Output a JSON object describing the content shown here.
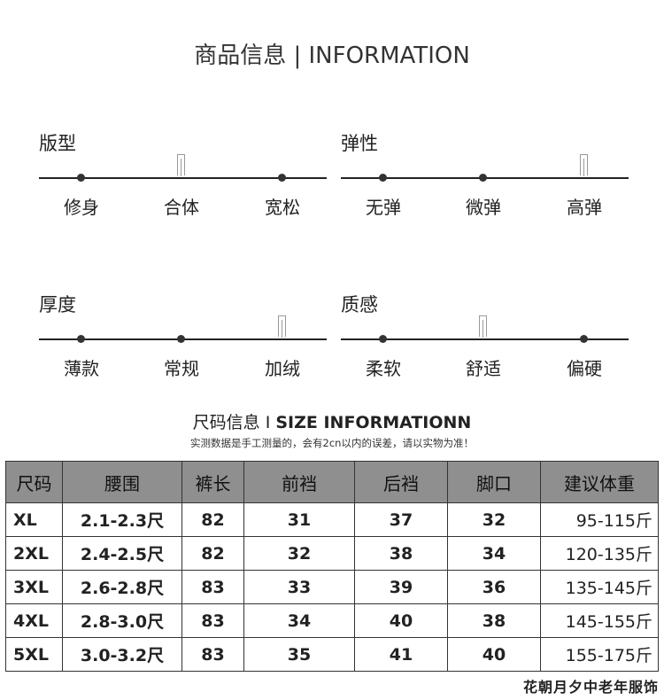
{
  "header": {
    "title": "商品信息 | INFORMATION"
  },
  "scales": [
    {
      "name": "版型",
      "options": [
        "修身",
        "合体",
        "宽松"
      ],
      "selected": 1
    },
    {
      "name": "弹性",
      "options": [
        "无弹",
        "微弹",
        "高弹"
      ],
      "selected": 2
    },
    {
      "name": "厚度",
      "options": [
        "薄款",
        "常规",
        "加绒"
      ],
      "selected": 2
    },
    {
      "name": "质感",
      "options": [
        "柔软",
        "舒适",
        "偏硬"
      ],
      "selected": 1
    }
  ],
  "size_info": {
    "title_cn": "尺码信息 I ",
    "title_en": "SIZE INFORMATIONN",
    "note": "实测数据是手工测量的，会有2cn以内的误差，请以实物为准！"
  },
  "table": {
    "headers": [
      "尺码",
      "腰围",
      "裤长",
      "前裆",
      "后裆",
      "脚口",
      "建议体重"
    ],
    "rows": [
      [
        "XL",
        "2.1-2.3尺",
        "82",
        "31",
        "37",
        "32",
        "95-115斤"
      ],
      [
        "2XL",
        "2.4-2.5尺",
        "82",
        "32",
        "38",
        "34",
        "120-135斤"
      ],
      [
        "3XL",
        "2.6-2.8尺",
        "83",
        "33",
        "39",
        "36",
        "135-145斤"
      ],
      [
        "4XL",
        "2.8-3.0尺",
        "83",
        "34",
        "40",
        "38",
        "145-155斤"
      ],
      [
        "5XL",
        "3.0-3.2尺",
        "83",
        "35",
        "41",
        "40",
        "155-175斤"
      ]
    ]
  },
  "watermark": "花朝月夕中老年服饰"
}
